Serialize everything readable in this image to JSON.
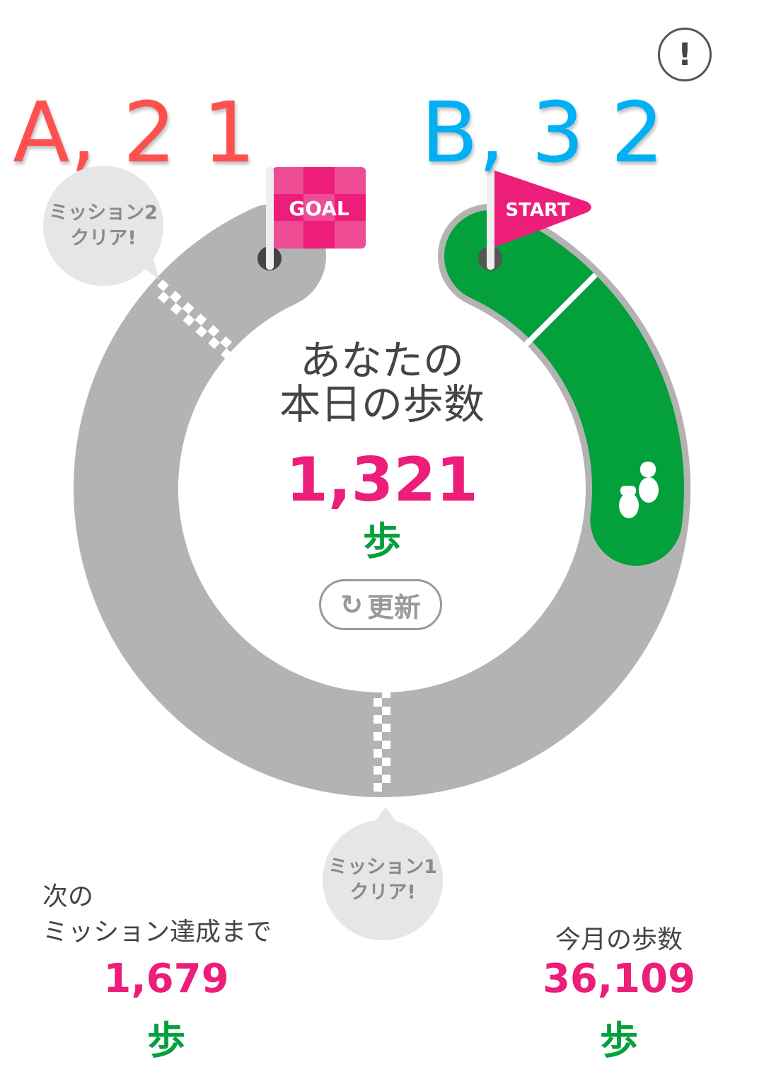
{
  "annotations": {
    "a_label": "A, 2 1",
    "b_label": "B, 3 2",
    "a_color": "#ff5050",
    "b_color": "#00b0f5"
  },
  "info_button": {
    "label": "!",
    "icon": "exclamation-circle-icon"
  },
  "flags": {
    "goal": "GOAL",
    "start": "START"
  },
  "missions": {
    "mission2": [
      "ミッション2",
      "クリア!"
    ],
    "mission1": [
      "ミッション1",
      "クリア!"
    ]
  },
  "today": {
    "title_line1": "あなたの",
    "title_line2": "本日の歩数",
    "steps": "1,321",
    "unit": "歩",
    "progress_fraction": 0.2
  },
  "refresh": {
    "label": "更新",
    "icon": "refresh-icon"
  },
  "next_mission": {
    "label_line1": "次の",
    "label_line2": "ミッション達成まで",
    "steps": "1,679",
    "unit": "歩"
  },
  "month": {
    "label": "今月の歩数",
    "steps": "36,109",
    "unit": "歩"
  },
  "colors": {
    "track": "#b3b3b3",
    "progress": "#03a03c",
    "accent": "#ec1e79",
    "flag": "#ec1e79"
  }
}
